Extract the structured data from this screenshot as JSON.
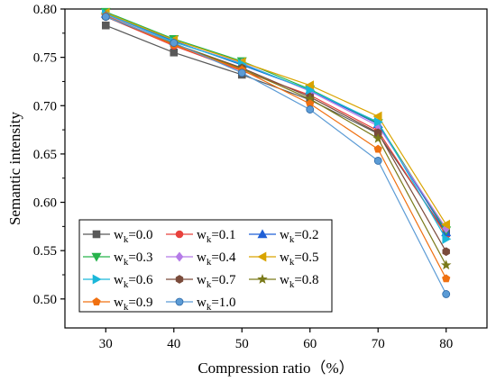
{
  "chart_data": {
    "type": "line",
    "xlabel": "Compression ratio（%）",
    "ylabel": "Semantic intensity",
    "x": [
      30,
      40,
      50,
      60,
      70,
      80
    ],
    "xlim": [
      24,
      86
    ],
    "ylim": [
      0.47,
      0.8
    ],
    "xticks": [
      "30",
      "40",
      "50",
      "60",
      "70",
      "80"
    ],
    "yticks": [
      "0.50",
      "0.55",
      "0.60",
      "0.65",
      "0.70",
      "0.75",
      "0.80"
    ],
    "legend_position": "lower-left",
    "legend_prefix": "w",
    "legend_subscript": "k",
    "series": [
      {
        "name": "=0.0",
        "color": "#595959",
        "marker": "square",
        "values": [
          0.783,
          0.755,
          0.732,
          0.706,
          0.671,
          0.568
        ]
      },
      {
        "name": "=0.1",
        "color": "#e8413c",
        "marker": "circle",
        "values": [
          0.792,
          0.762,
          0.736,
          0.711,
          0.674,
          0.566
        ]
      },
      {
        "name": "=0.2",
        "color": "#1f5fd6",
        "marker": "triangle-up",
        "values": [
          0.795,
          0.767,
          0.742,
          0.716,
          0.681,
          0.569
        ]
      },
      {
        "name": "=0.3",
        "color": "#27b34b",
        "marker": "triangle-down",
        "values": [
          0.797,
          0.769,
          0.746,
          0.717,
          0.682,
          0.571
        ]
      },
      {
        "name": "=0.4",
        "color": "#b57be8",
        "marker": "diamond",
        "values": [
          0.794,
          0.766,
          0.744,
          0.715,
          0.679,
          0.573
        ]
      },
      {
        "name": "=0.5",
        "color": "#d9a400",
        "marker": "triangle-left",
        "values": [
          0.796,
          0.768,
          0.745,
          0.721,
          0.689,
          0.577
        ]
      },
      {
        "name": "=0.6",
        "color": "#1ab7d9",
        "marker": "triangle-right",
        "values": [
          0.795,
          0.766,
          0.743,
          0.716,
          0.683,
          0.562
        ]
      },
      {
        "name": "=0.7",
        "color": "#7a4a3a",
        "marker": "hexagon",
        "values": [
          0.792,
          0.764,
          0.739,
          0.709,
          0.672,
          0.549
        ]
      },
      {
        "name": "=0.8",
        "color": "#7a7a1a",
        "marker": "star",
        "values": [
          0.793,
          0.764,
          0.738,
          0.707,
          0.666,
          0.535
        ]
      },
      {
        "name": "=0.9",
        "color": "#f07010",
        "marker": "pentagon",
        "values": [
          0.793,
          0.763,
          0.737,
          0.702,
          0.655,
          0.521
        ]
      },
      {
        "name": "=1.0",
        "color": "#5b9bd5",
        "marker": "sphere",
        "values": [
          0.792,
          0.765,
          0.734,
          0.696,
          0.643,
          0.505
        ]
      }
    ]
  }
}
